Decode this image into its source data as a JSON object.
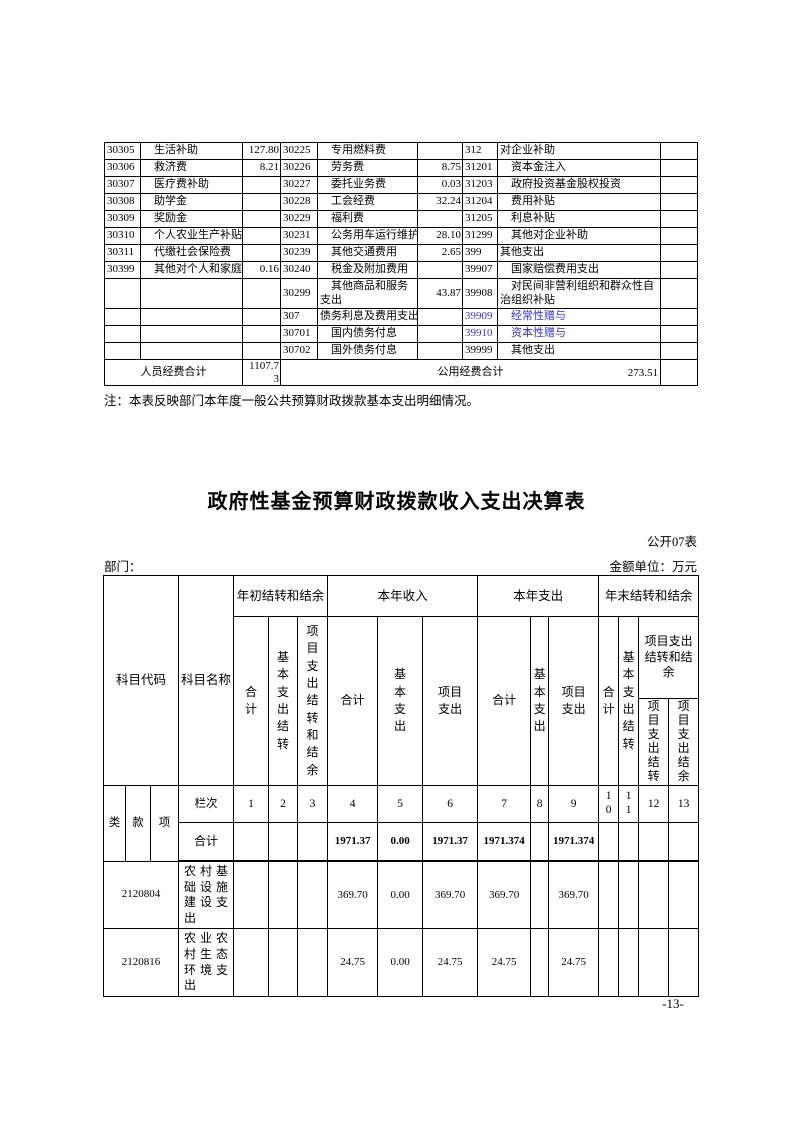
{
  "table1": {
    "link_color": "#3333cc",
    "rows": [
      [
        "30305",
        "生活补助",
        "127.80",
        "30225",
        "专用燃料费",
        "",
        "312",
        "对企业补助",
        ""
      ],
      [
        "30306",
        "救济费",
        "8.21",
        "30226",
        "劳务费",
        "8.75",
        "31201",
        "资本金注入",
        ""
      ],
      [
        "30307",
        "医疗费补助",
        "",
        "30227",
        "委托业务费",
        "0.03",
        "31203",
        "政府投资基金股权投资",
        ""
      ],
      [
        "30308",
        "助学金",
        "",
        "30228",
        "工会经费",
        "32.24",
        "31204",
        "费用补贴",
        ""
      ],
      [
        "30309",
        "奖励金",
        "",
        "30229",
        "福利费",
        "",
        "31205",
        "利息补贴",
        ""
      ],
      [
        "30310",
        "个人农业生产补贴",
        "",
        "30231",
        "公务用车运行维护费",
        "28.10",
        "31299",
        "其他对企业补助",
        ""
      ],
      [
        "30311",
        "代缴社会保险费",
        "",
        "30239",
        "其他交通费用",
        "2.65",
        "399",
        "其他支出",
        ""
      ],
      [
        "30399",
        "其他对个人和家庭的补助",
        "0.16",
        "30240",
        "税金及附加费用",
        "",
        "39907",
        "国家赔偿费用支出",
        ""
      ],
      [
        "",
        "",
        "",
        "30299",
        "其他商品和服务支出",
        "43.87",
        "39908",
        "对民间非营利组织和群众性自治组织补贴",
        ""
      ],
      [
        "",
        "",
        "",
        "307",
        "债务利息及费用支出",
        "",
        {
          "v": "39909",
          "blue": true
        },
        {
          "v": "经常性赠与",
          "blue": true
        },
        ""
      ],
      [
        "",
        "",
        "",
        "30701",
        "国内债务付息",
        "",
        {
          "v": "39910",
          "blue": true
        },
        {
          "v": "资本性赠与",
          "blue": true
        },
        ""
      ],
      [
        "",
        "",
        "",
        "30702",
        "国外债务付息",
        "",
        "39999",
        "其他支出",
        ""
      ]
    ],
    "footer": {
      "left_label": "人员经费合计",
      "left_value": "1107.73",
      "right_label": "公用经费合计",
      "right_value": "273.51"
    }
  },
  "note": "注：本表反映部门本年度一般公共预算财政拨款基本支出明细情况。",
  "title": "政府性基金预算财政拨款收入支出决算表",
  "table_no": "公开07表",
  "dept_label": "部门：",
  "unit_label": "金额单位：万元",
  "page_number": "-13-",
  "table2": {
    "headers": {
      "subject_code": "科目代码",
      "subject_name": "科目名称",
      "group_begin": "年初结转和结余",
      "group_income": "本年收入",
      "group_expense": "本年支出",
      "group_end": "年末结转和结余",
      "c1": "合计",
      "c2": "基本支出结转",
      "c3": "项目支出结转和结余",
      "c4": "合计",
      "c5": "基本支出",
      "c6": "项目支出",
      "c7": "合计",
      "c8": "基本支出",
      "c9": "项目支出",
      "c10": "合计",
      "c11": "基本支出结转",
      "c12_13": "项目支出结转和结余",
      "c12": "项目支出结转",
      "c13": "项目支出结余",
      "cls": "类",
      "section": "款",
      "item": "项",
      "lanci": "栏次",
      "total": "合计"
    },
    "col_numbers": [
      "1",
      "2",
      "3",
      "4",
      "5",
      "6",
      "7",
      "8",
      "9",
      "10",
      "11",
      "12",
      "13"
    ],
    "total_row": {
      "c4": "1971.37",
      "c5": "0.00",
      "c6": "1971.37",
      "c7": "1971.374",
      "c9": "1971.374"
    },
    "rows": [
      {
        "code": "2120804",
        "name": "农村基础设施建设支出",
        "c4": "369.70",
        "c5": "0.00",
        "c6": "369.70",
        "c7": "369.70",
        "c9": "369.70"
      },
      {
        "code": "2120816",
        "name": "农业农村生态环境支出",
        "c4": "24.75",
        "c5": "0.00",
        "c6": "24.75",
        "c7": "24.75",
        "c9": "24.75"
      }
    ]
  }
}
